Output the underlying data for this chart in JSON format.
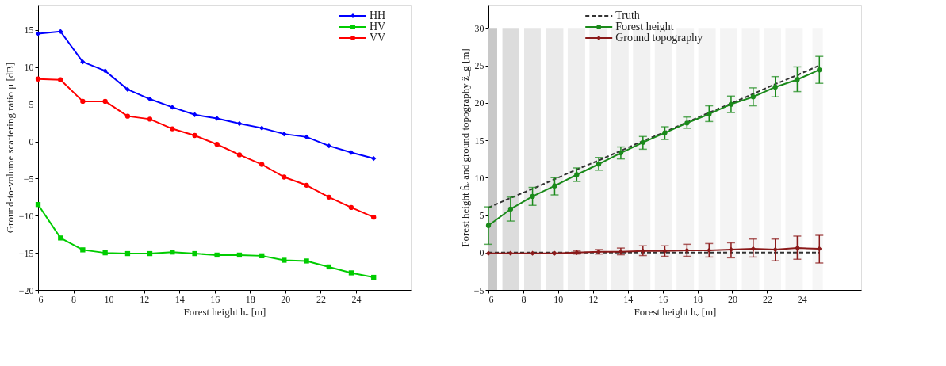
{
  "chart_data": [
    {
      "type": "line",
      "xlabel": "Forest height hᵥ [m]",
      "ylabel": "Ground-to-volume scattering ratio μ [dB]",
      "xlim": [
        6,
        27.1
      ],
      "ylim": [
        -20,
        18.4
      ],
      "xticks": [
        6,
        8,
        10,
        12,
        14,
        16,
        18,
        20,
        22,
        24
      ],
      "yticks": [
        -20,
        -15,
        -10,
        -5,
        0,
        5,
        10,
        15
      ],
      "grid": false,
      "legend": "top right",
      "x": [
        6,
        7.27,
        8.53,
        9.8,
        11.07,
        12.33,
        13.6,
        14.87,
        16.13,
        17.4,
        18.67,
        19.93,
        21.2,
        22.47,
        23.73,
        25
      ],
      "series": [
        {
          "name": "HH",
          "color": "#0000ff",
          "marker": "diamond",
          "values": [
            14.5,
            14.8,
            10.7,
            9.5,
            7.0,
            5.7,
            4.6,
            3.6,
            3.1,
            2.4,
            1.8,
            1.0,
            0.6,
            -0.6,
            -1.5,
            -2.3
          ]
        },
        {
          "name": "HV",
          "color": "#00cc00",
          "marker": "square",
          "values": [
            -8.5,
            -13,
            -14.6,
            -15,
            -15.1,
            -15.1,
            -14.9,
            -15.1,
            -15.3,
            -15.3,
            -15.4,
            -16,
            -16.1,
            -16.9,
            -17.7,
            -18.3
          ]
        },
        {
          "name": "VV",
          "color": "#ff0000",
          "marker": "circle",
          "values": [
            8.4,
            8.3,
            5.4,
            5.4,
            3.4,
            3.0,
            1.7,
            0.8,
            -0.4,
            -1.8,
            -3.1,
            -4.8,
            -5.9,
            -7.5,
            -8.9,
            -10.2
          ]
        }
      ]
    },
    {
      "type": "line",
      "xlabel": "Forest height hᵥ [m]",
      "ylabel": "Forest height ĥᵥ and ground topography ẑ_g [m]",
      "xlim": [
        6,
        27.4
      ],
      "ylim": [
        -5,
        33.1
      ],
      "xticks": [
        6,
        8,
        10,
        12,
        14,
        16,
        18,
        20,
        22,
        24
      ],
      "yticks": [
        -5,
        0,
        5,
        10,
        15,
        20,
        25,
        30
      ],
      "grid": false,
      "legend": "top",
      "x": [
        6,
        7.27,
        8.53,
        9.8,
        11.07,
        12.33,
        13.6,
        14.87,
        16.13,
        17.4,
        18.67,
        19.93,
        21.2,
        22.47,
        23.73,
        25
      ],
      "bands": [
        {
          "axis": "x",
          "from": 6,
          "to": 6.5,
          "color": "#c8c8c8"
        },
        {
          "axis": "x",
          "from": 6.8,
          "to": 7.75,
          "color": "#dcdcdc"
        },
        {
          "axis": "x",
          "from": 8.05,
          "to": 9.0,
          "color": "#e6e6e6"
        },
        {
          "axis": "x",
          "from": 9.3,
          "to": 10.3,
          "color": "#eaeaea"
        },
        {
          "axis": "x",
          "from": 10.55,
          "to": 11.55,
          "color": "#eeeeee"
        },
        {
          "axis": "x",
          "from": 11.8,
          "to": 12.8,
          "color": "#efefef"
        },
        {
          "axis": "x",
          "from": 13.05,
          "to": 14.05,
          "color": "#f0f0f0"
        },
        {
          "axis": "x",
          "from": 14.3,
          "to": 15.3,
          "color": "#f1f1f1"
        },
        {
          "axis": "x",
          "from": 15.55,
          "to": 16.55,
          "color": "#f2f2f2"
        },
        {
          "axis": "x",
          "from": 16.8,
          "to": 17.8,
          "color": "#f3f3f3"
        },
        {
          "axis": "x",
          "from": 18.05,
          "to": 19.05,
          "color": "#f3f3f3"
        },
        {
          "axis": "x",
          "from": 19.3,
          "to": 20.3,
          "color": "#f4f4f4"
        },
        {
          "axis": "x",
          "from": 20.55,
          "to": 21.55,
          "color": "#f4f4f4"
        },
        {
          "axis": "x",
          "from": 21.8,
          "to": 22.8,
          "color": "#f5f5f5"
        },
        {
          "axis": "x",
          "from": 23.05,
          "to": 24.05,
          "color": "#f5f5f5"
        },
        {
          "axis": "x",
          "from": 24.6,
          "to": 25.2,
          "color": "#f6f6f6"
        }
      ],
      "series": [
        {
          "name": "Truth",
          "color": "#333333",
          "marker": "none",
          "line_style": "dashed",
          "values": [
            6,
            7.3,
            8.5,
            9.8,
            11.1,
            12.3,
            13.6,
            14.9,
            16.1,
            17.4,
            18.7,
            19.9,
            21.2,
            22.5,
            23.7,
            25
          ]
        },
        {
          "color": "#333333",
          "marker": "none",
          "line_style": "dashed",
          "values": [
            0,
            0,
            0,
            0,
            0,
            0,
            0,
            0,
            0,
            0,
            0,
            0,
            0,
            0,
            0,
            0
          ]
        },
        {
          "name": "Forest height",
          "color": "#1a8a1a",
          "marker": "circle",
          "values": [
            3.6,
            5.8,
            7.5,
            8.9,
            10.4,
            11.8,
            13.3,
            14.7,
            16.0,
            17.3,
            18.5,
            19.8,
            20.8,
            22.1,
            23.1,
            24.4
          ],
          "errors": [
            [
              1.1,
              6.1
            ],
            [
              4.2,
              7.4
            ],
            [
              6.3,
              8.7
            ],
            [
              7.7,
              10.0
            ],
            [
              9.5,
              11.3
            ],
            [
              11.0,
              12.7
            ],
            [
              12.5,
              14.1
            ],
            [
              13.8,
              15.5
            ],
            [
              15.1,
              16.8
            ],
            [
              16.6,
              18.1
            ],
            [
              17.5,
              19.6
            ],
            [
              18.7,
              20.9
            ],
            [
              19.6,
              22.0
            ],
            [
              20.8,
              23.5
            ],
            [
              21.5,
              24.8
            ],
            [
              22.6,
              26.2
            ]
          ]
        },
        {
          "name": "Ground topography",
          "color": "#8b1a1a",
          "marker": "diamond",
          "values": [
            -0.1,
            -0.1,
            -0.1,
            -0.1,
            0,
            0.1,
            0.1,
            0.2,
            0.2,
            0.3,
            0.3,
            0.4,
            0.5,
            0.4,
            0.6,
            0.5
          ],
          "errors": [
            null,
            null,
            null,
            null,
            [
              -0.2,
              0.2
            ],
            [
              -0.2,
              0.4
            ],
            [
              -0.3,
              0.6
            ],
            [
              -0.4,
              0.9
            ],
            [
              -0.5,
              0.9
            ],
            [
              -0.5,
              1.1
            ],
            [
              -0.6,
              1.2
            ],
            [
              -0.7,
              1.3
            ],
            [
              -0.6,
              1.8
            ],
            [
              -1.1,
              1.8
            ],
            [
              -0.9,
              2.2
            ],
            [
              -1.4,
              2.3
            ]
          ]
        }
      ]
    }
  ]
}
